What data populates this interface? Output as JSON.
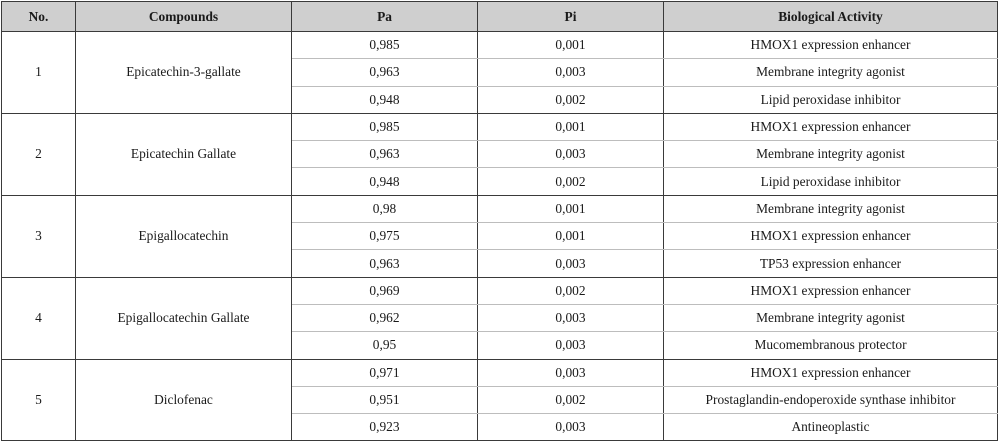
{
  "headers": {
    "no": "No.",
    "compounds": "Compounds",
    "pa": "Pa",
    "pi": "Pi",
    "activity": "Biological Activity"
  },
  "groups": [
    {
      "no": "1",
      "compound": "Epicatechin-3-gallate",
      "rows": [
        {
          "pa": "0,985",
          "pi": "0,001",
          "activity": "HMOX1 expression enhancer"
        },
        {
          "pa": "0,963",
          "pi": "0,003",
          "activity": "Membrane integrity agonist"
        },
        {
          "pa": "0,948",
          "pi": "0,002",
          "activity": "Lipid peroxidase inhibitor"
        }
      ]
    },
    {
      "no": "2",
      "compound": "Epicatechin Gallate",
      "rows": [
        {
          "pa": "0,985",
          "pi": "0,001",
          "activity": "HMOX1 expression enhancer"
        },
        {
          "pa": "0,963",
          "pi": "0,003",
          "activity": "Membrane integrity agonist"
        },
        {
          "pa": "0,948",
          "pi": "0,002",
          "activity": "Lipid peroxidase inhibitor"
        }
      ]
    },
    {
      "no": "3",
      "compound": "Epigallocatechin",
      "rows": [
        {
          "pa": "0,98",
          "pi": "0,001",
          "activity": "Membrane integrity agonist"
        },
        {
          "pa": "0,975",
          "pi": "0,001",
          "activity": "HMOX1 expression enhancer"
        },
        {
          "pa": "0,963",
          "pi": "0,003",
          "activity": "TP53 expression enhancer"
        }
      ]
    },
    {
      "no": "4",
      "compound": "Epigallocatechin Gallate",
      "rows": [
        {
          "pa": "0,969",
          "pi": "0,002",
          "activity": "HMOX1 expression enhancer"
        },
        {
          "pa": "0,962",
          "pi": "0,003",
          "activity": "Membrane integrity agonist"
        },
        {
          "pa": "0,95",
          "pi": "0,003",
          "activity": "Mucomembranous protector"
        }
      ]
    },
    {
      "no": "5",
      "compound": "Diclofenac",
      "rows": [
        {
          "pa": "0,971",
          "pi": "0,003",
          "activity": "HMOX1 expression enhancer"
        },
        {
          "pa": "0,951",
          "pi": "0,002",
          "activity": "Prostaglandin-endoperoxide synthase inhibitor"
        },
        {
          "pa": "0,923",
          "pi": "0,003",
          "activity": "Antineoplastic"
        }
      ]
    }
  ]
}
